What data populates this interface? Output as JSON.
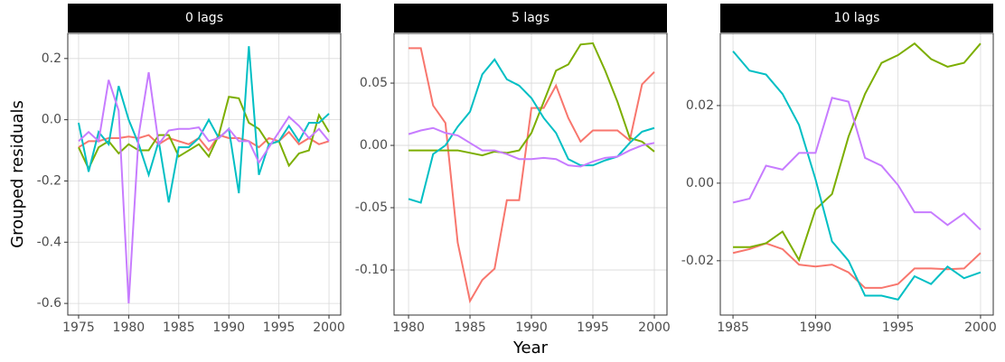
{
  "chart_data": [
    {
      "type": "line",
      "title": "0 lags",
      "y_label": "Grouped residuals",
      "x": [
        1975,
        1976,
        1977,
        1978,
        1979,
        1980,
        1981,
        1982,
        1983,
        1984,
        1985,
        1986,
        1987,
        1988,
        1989,
        1990,
        1991,
        1992,
        1993,
        1994,
        1995,
        1996,
        1997,
        1998,
        1999,
        2000
      ],
      "series": [
        {
          "color": "#F8766D",
          "values": [
            -0.09,
            -0.07,
            -0.07,
            -0.06,
            -0.06,
            -0.055,
            -0.06,
            -0.05,
            -0.08,
            -0.06,
            -0.07,
            -0.08,
            -0.06,
            -0.1,
            -0.05,
            -0.06,
            -0.06,
            -0.07,
            -0.09,
            -0.06,
            -0.07,
            -0.04,
            -0.08,
            -0.06,
            -0.08,
            -0.07
          ]
        },
        {
          "color": "#7CAE00",
          "values": [
            -0.09,
            -0.16,
            -0.09,
            -0.07,
            -0.11,
            -0.08,
            -0.1,
            -0.1,
            -0.05,
            -0.05,
            -0.12,
            -0.1,
            -0.08,
            -0.12,
            -0.05,
            0.075,
            0.07,
            -0.01,
            -0.03,
            -0.08,
            -0.07,
            -0.15,
            -0.11,
            -0.1,
            0.015,
            -0.04
          ]
        },
        {
          "color": "#00BFC4",
          "values": [
            -0.01,
            -0.17,
            -0.04,
            -0.08,
            0.11,
            0.0,
            -0.08,
            -0.18,
            -0.07,
            -0.27,
            -0.09,
            -0.09,
            -0.06,
            0.0,
            -0.06,
            -0.03,
            -0.24,
            0.24,
            -0.18,
            -0.08,
            -0.07,
            -0.02,
            -0.07,
            -0.01,
            -0.01,
            0.02
          ]
        },
        {
          "color": "#C77CFF",
          "values": [
            -0.07,
            -0.04,
            -0.07,
            0.13,
            0.03,
            -0.6,
            -0.05,
            0.155,
            -0.08,
            -0.035,
            -0.03,
            -0.03,
            -0.025,
            -0.07,
            -0.06,
            -0.03,
            -0.07,
            -0.07,
            -0.14,
            -0.09,
            -0.04,
            0.01,
            -0.02,
            -0.06,
            -0.03,
            -0.07
          ]
        }
      ],
      "xlim": [
        1973.92,
        2001.17
      ],
      "xticks": [
        1975,
        1980,
        1985,
        1990,
        1995,
        2000
      ],
      "ylim": [
        -0.638,
        0.282
      ],
      "yticks": [
        -0.6,
        -0.4,
        -0.2,
        {
          "value": 0,
          "label": "0.0"
        },
        0.2
      ],
      "grid": true
    },
    {
      "type": "line",
      "title": "5 lags",
      "x_label": "Year",
      "x": [
        1980,
        1981,
        1982,
        1983,
        1984,
        1985,
        1986,
        1987,
        1988,
        1989,
        1990,
        1991,
        1992,
        1993,
        1994,
        1995,
        1996,
        1997,
        1998,
        1999,
        2000
      ],
      "series": [
        {
          "color": "#F8766D",
          "values": [
            0.078,
            0.078,
            0.032,
            0.018,
            -0.078,
            -0.125,
            -0.108,
            -0.099,
            -0.044,
            -0.044,
            0.03,
            0.03,
            0.048,
            0.022,
            0.003,
            0.012,
            0.012,
            0.012,
            0.004,
            0.049,
            0.059
          ]
        },
        {
          "color": "#7CAE00",
          "values": [
            -0.004,
            -0.004,
            -0.004,
            -0.004,
            -0.004,
            -0.006,
            -0.008,
            -0.005,
            -0.006,
            -0.004,
            0.01,
            0.035,
            0.06,
            0.065,
            0.081,
            0.082,
            0.06,
            0.035,
            0.006,
            0.003,
            -0.005
          ]
        },
        {
          "color": "#00BFC4",
          "values": [
            -0.043,
            -0.046,
            -0.007,
            0.0,
            0.015,
            0.027,
            0.057,
            0.069,
            0.053,
            0.048,
            0.038,
            0.022,
            0.01,
            -0.011,
            -0.016,
            -0.016,
            -0.012,
            -0.009,
            0.002,
            0.011,
            0.014
          ]
        },
        {
          "color": "#C77CFF",
          "values": [
            0.009,
            0.012,
            0.014,
            0.01,
            0.008,
            0.002,
            -0.004,
            -0.004,
            -0.007,
            -0.011,
            -0.011,
            -0.01,
            -0.011,
            -0.016,
            -0.017,
            -0.013,
            -0.01,
            -0.009,
            -0.004,
            0.0,
            0.002
          ]
        }
      ],
      "xlim": [
        1978.82,
        2001.03
      ],
      "xticks": [
        1980,
        1985,
        1990,
        1995,
        2000
      ],
      "ylim": [
        -0.1362,
        0.0899
      ],
      "yticks": [
        {
          "value": -0.1,
          "label": "-0.10"
        },
        -0.05,
        {
          "value": 0,
          "label": "0.00"
        },
        0.05
      ],
      "grid": true
    },
    {
      "type": "line",
      "title": "10 lags",
      "x": [
        1985,
        1986,
        1987,
        1988,
        1989,
        1990,
        1991,
        1992,
        1993,
        1994,
        1995,
        1996,
        1997,
        1998,
        1999,
        2000
      ],
      "series": [
        {
          "color": "#F8766D",
          "values": [
            -0.018,
            -0.017,
            -0.0155,
            -0.017,
            -0.021,
            -0.0215,
            -0.021,
            -0.023,
            -0.027,
            -0.027,
            -0.026,
            -0.022,
            -0.022,
            -0.0222,
            -0.022,
            -0.018
          ]
        },
        {
          "color": "#7CAE00",
          "values": [
            -0.0165,
            -0.0165,
            -0.0155,
            -0.0125,
            -0.0198,
            -0.0068,
            -0.0028,
            0.012,
            0.023,
            0.031,
            0.033,
            0.036,
            0.032,
            0.03,
            0.031,
            0.036
          ]
        },
        {
          "color": "#00BFC4",
          "values": [
            0.034,
            0.029,
            0.028,
            0.023,
            0.015,
            0.001,
            -0.015,
            -0.02,
            -0.029,
            -0.029,
            -0.03,
            -0.024,
            -0.026,
            -0.0215,
            -0.0245,
            -0.023
          ]
        },
        {
          "color": "#C77CFF",
          "values": [
            -0.005,
            -0.004,
            0.0045,
            0.0035,
            0.0078,
            0.0078,
            0.022,
            0.021,
            0.0065,
            0.0045,
            -0.0005,
            -0.0075,
            -0.0075,
            -0.0108,
            -0.0078,
            -0.012
          ]
        }
      ],
      "xlim": [
        1984.23,
        2000.77
      ],
      "xticks": [
        1985,
        1990,
        1995,
        2000
      ],
      "ylim": [
        -0.034,
        0.0386
      ],
      "yticks": [
        -0.02,
        {
          "value": 0,
          "label": "0.00"
        },
        0.02
      ],
      "grid": true
    }
  ]
}
